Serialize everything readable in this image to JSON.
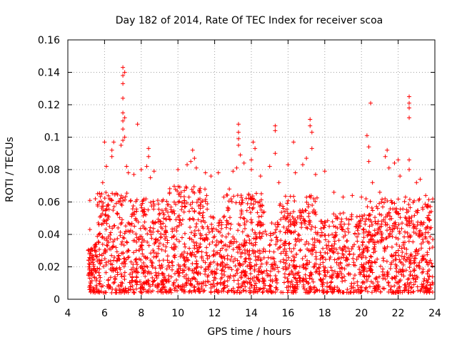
{
  "chart_data": {
    "type": "scatter",
    "title": "Day 182 of 2014, Rate Of TEC Index for receiver scoa",
    "xlabel": "GPS time / hours",
    "ylabel": "ROTI / TECUs",
    "xlim": [
      4,
      24
    ],
    "ylim": [
      0,
      0.16
    ],
    "x_ticks": [
      "4",
      "6",
      "8",
      "10",
      "12",
      "14",
      "16",
      "18",
      "20",
      "22",
      "24"
    ],
    "y_ticks": [
      "0",
      "0.02",
      "0.04",
      "0.06",
      "0.08",
      "0.1",
      "0.12",
      "0.14",
      "0.16"
    ],
    "grid": true,
    "marker": "+",
    "color": "#ff0000",
    "data_extent": {
      "x_start": 5.1,
      "x_end": 23.9
    },
    "series": [
      {
        "points": [
          [
            5.2,
            0.061
          ],
          [
            5.2,
            0.043
          ],
          [
            5.5,
            0.062
          ],
          [
            5.9,
            0.072
          ],
          [
            6.0,
            0.097
          ],
          [
            6.1,
            0.082
          ],
          [
            6.4,
            0.092
          ],
          [
            6.4,
            0.088
          ],
          [
            6.5,
            0.097
          ],
          [
            6.9,
            0.095
          ],
          [
            7.0,
            0.143
          ],
          [
            7.0,
            0.138
          ],
          [
            7.0,
            0.133
          ],
          [
            7.0,
            0.124
          ],
          [
            7.0,
            0.115
          ],
          [
            7.0,
            0.11
          ],
          [
            7.0,
            0.105
          ],
          [
            7.0,
            0.098
          ],
          [
            7.1,
            0.14
          ],
          [
            7.1,
            0.112
          ],
          [
            7.1,
            0.1
          ],
          [
            7.2,
            0.082
          ],
          [
            7.3,
            0.078
          ],
          [
            7.6,
            0.077
          ],
          [
            7.8,
            0.108
          ],
          [
            8.0,
            0.08
          ],
          [
            8.3,
            0.082
          ],
          [
            8.4,
            0.093
          ],
          [
            8.4,
            0.088
          ],
          [
            8.5,
            0.075
          ],
          [
            8.7,
            0.079
          ],
          [
            10.0,
            0.08
          ],
          [
            10.5,
            0.083
          ],
          [
            10.7,
            0.085
          ],
          [
            10.8,
            0.092
          ],
          [
            10.9,
            0.087
          ],
          [
            11.0,
            0.081
          ],
          [
            11.5,
            0.078
          ],
          [
            11.8,
            0.076
          ],
          [
            12.2,
            0.078
          ],
          [
            12.5,
            0.063
          ],
          [
            12.8,
            0.068
          ],
          [
            13.0,
            0.079
          ],
          [
            13.2,
            0.081
          ],
          [
            13.3,
            0.108
          ],
          [
            13.3,
            0.103
          ],
          [
            13.3,
            0.099
          ],
          [
            13.3,
            0.095
          ],
          [
            13.4,
            0.089
          ],
          [
            13.6,
            0.084
          ],
          [
            14.0,
            0.086
          ],
          [
            14.0,
            0.08
          ],
          [
            14.1,
            0.097
          ],
          [
            14.2,
            0.093
          ],
          [
            14.5,
            0.076
          ],
          [
            15.0,
            0.082
          ],
          [
            15.3,
            0.107
          ],
          [
            15.3,
            0.104
          ],
          [
            15.3,
            0.09
          ],
          [
            15.5,
            0.072
          ],
          [
            16.0,
            0.083
          ],
          [
            16.3,
            0.097
          ],
          [
            16.4,
            0.078
          ],
          [
            16.8,
            0.083
          ],
          [
            17.0,
            0.087
          ],
          [
            17.2,
            0.111
          ],
          [
            17.2,
            0.107
          ],
          [
            17.3,
            0.103
          ],
          [
            17.3,
            0.093
          ],
          [
            17.5,
            0.077
          ],
          [
            18.0,
            0.079
          ],
          [
            18.5,
            0.066
          ],
          [
            19.0,
            0.063
          ],
          [
            19.5,
            0.064
          ],
          [
            20.0,
            0.063
          ],
          [
            20.3,
            0.101
          ],
          [
            20.4,
            0.094
          ],
          [
            20.4,
            0.085
          ],
          [
            20.5,
            0.121
          ],
          [
            20.6,
            0.072
          ],
          [
            21.0,
            0.066
          ],
          [
            21.3,
            0.088
          ],
          [
            21.4,
            0.092
          ],
          [
            21.5,
            0.081
          ],
          [
            21.8,
            0.084
          ],
          [
            22.0,
            0.086
          ],
          [
            22.1,
            0.076
          ],
          [
            22.4,
            0.063
          ],
          [
            22.6,
            0.125
          ],
          [
            22.6,
            0.121
          ],
          [
            22.6,
            0.118
          ],
          [
            22.6,
            0.112
          ],
          [
            22.6,
            0.086
          ],
          [
            22.6,
            0.08
          ],
          [
            23.0,
            0.072
          ],
          [
            23.2,
            0.074
          ],
          [
            23.5,
            0.064
          ]
        ]
      }
    ]
  }
}
